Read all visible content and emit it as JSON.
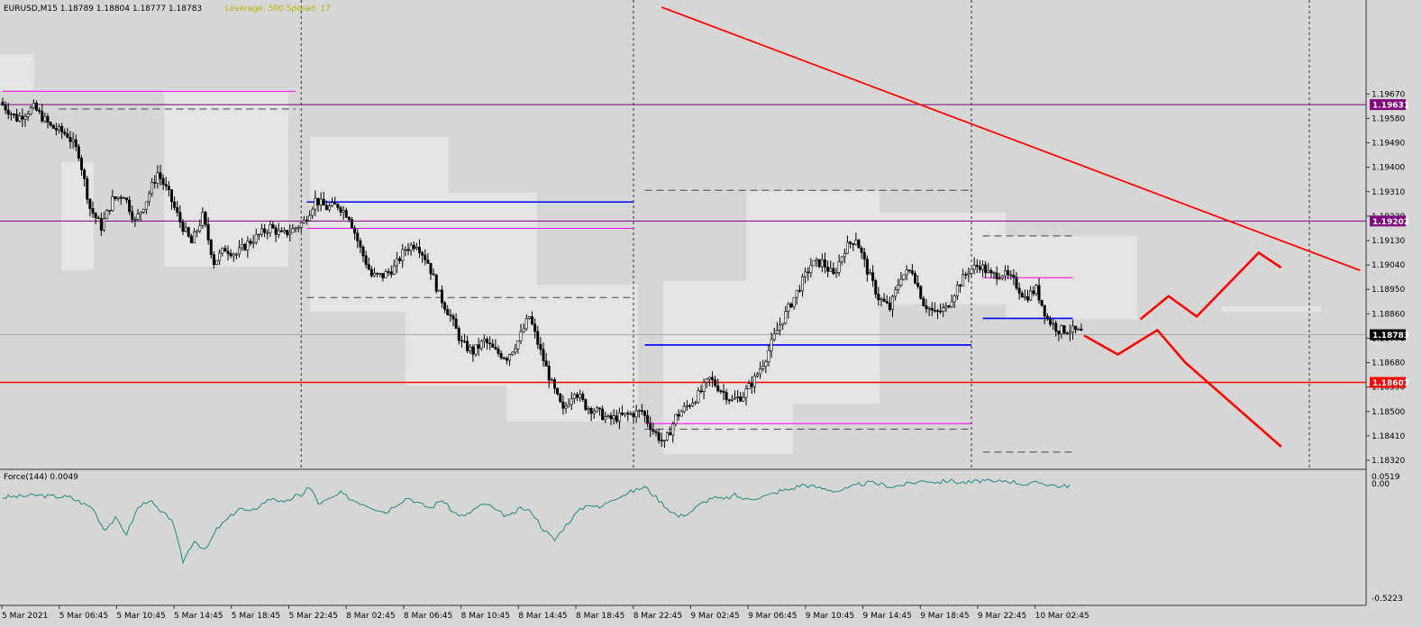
{
  "header": {
    "symbol_info": "EURUSD,M15  1.18789 1.18804 1.18777 1.18783",
    "leverage_info": "Leverage: 500 Spread: 17"
  },
  "indicator": {
    "label": "Force(144) 0.0049",
    "y_ticks": [
      "0.0519",
      "0.00",
      "-0.5223"
    ]
  },
  "colors": {
    "background": "#d6d6d6",
    "bull_candle": "#ffffff",
    "bear_candle": "#000000",
    "trendline": "#ff0000",
    "support": "#ff0000",
    "level_purple": "#800080",
    "level_blue": "#0000ff",
    "level_magenta": "#ff00ff",
    "force_line": "#1f8a7a"
  },
  "chart_data": {
    "type": "candlestick",
    "symbol": "EURUSD",
    "timeframe": "M15",
    "ylim": [
      1.1829,
      1.1999
    ],
    "y_ticks": [
      "1.19670",
      "1.19580",
      "1.19490",
      "1.19400",
      "1.19310",
      "1.19220",
      "1.19130",
      "1.19040",
      "1.18950",
      "1.18860",
      "1.18770",
      "1.18680",
      "1.18590",
      "1.18500",
      "1.18410",
      "1.18320"
    ],
    "x_ticks": [
      "5 Mar 2021",
      "5 Mar 06:45",
      "5 Mar 10:45",
      "5 Mar 14:45",
      "5 Mar 18:45",
      "5 Mar 22:45",
      "8 Mar 02:45",
      "8 Mar 06:45",
      "8 Mar 10:45",
      "8 Mar 14:45",
      "8 Mar 18:45",
      "8 Mar 22:45",
      "9 Mar 02:45",
      "9 Mar 06:45",
      "9 Mar 10:45",
      "9 Mar 14:45",
      "9 Mar 18:45",
      "9 Mar 22:45",
      "10 Mar 02:45"
    ],
    "price_path": [
      [
        0,
        1.1964
      ],
      [
        3,
        1.1958
      ],
      [
        6,
        1.1962
      ],
      [
        9,
        1.1955
      ],
      [
        12,
        1.1952
      ],
      [
        14,
        1.1945
      ],
      [
        16,
        1.1925
      ],
      [
        18,
        1.1918
      ],
      [
        20,
        1.1928
      ],
      [
        22,
        1.193
      ],
      [
        24,
        1.192
      ],
      [
        26,
        1.1928
      ],
      [
        28,
        1.1938
      ],
      [
        30,
        1.193
      ],
      [
        32,
        1.192
      ],
      [
        34,
        1.1912
      ],
      [
        36,
        1.1922
      ],
      [
        38,
        1.1905
      ],
      [
        40,
        1.191
      ],
      [
        42,
        1.1908
      ],
      [
        44,
        1.1912
      ],
      [
        46,
        1.1915
      ],
      [
        48,
        1.1918
      ],
      [
        50,
        1.1915
      ],
      [
        52,
        1.1917
      ],
      [
        54,
        1.192
      ],
      [
        56,
        1.1928
      ],
      [
        58,
        1.1925
      ],
      [
        60,
        1.1926
      ],
      [
        62,
        1.1922
      ],
      [
        64,
        1.191
      ],
      [
        66,
        1.19
      ],
      [
        68,
        1.19
      ],
      [
        70,
        1.1903
      ],
      [
        72,
        1.191
      ],
      [
        74,
        1.1912
      ],
      [
        76,
        1.1905
      ],
      [
        78,
        1.1893
      ],
      [
        80,
        1.1885
      ],
      [
        82,
        1.1875
      ],
      [
        84,
        1.1872
      ],
      [
        86,
        1.1876
      ],
      [
        88,
        1.1872
      ],
      [
        90,
        1.187
      ],
      [
        92,
        1.1876
      ],
      [
        94,
        1.1885
      ],
      [
        96,
        1.1872
      ],
      [
        98,
        1.186
      ],
      [
        100,
        1.185
      ],
      [
        102,
        1.1858
      ],
      [
        104,
        1.1852
      ],
      [
        106,
        1.185
      ],
      [
        108,
        1.1847
      ],
      [
        110,
        1.1848
      ],
      [
        112,
        1.1849
      ],
      [
        114,
        1.185
      ],
      [
        116,
        1.1843
      ],
      [
        118,
        1.1838
      ],
      [
        120,
        1.1848
      ],
      [
        122,
        1.1852
      ],
      [
        124,
        1.1856
      ],
      [
        126,
        1.1862
      ],
      [
        128,
        1.1858
      ],
      [
        130,
        1.1854
      ],
      [
        132,
        1.1856
      ],
      [
        134,
        1.1862
      ],
      [
        136,
        1.187
      ],
      [
        138,
        1.188
      ],
      [
        140,
        1.1888
      ],
      [
        142,
        1.1896
      ],
      [
        144,
        1.1904
      ],
      [
        146,
        1.1905
      ],
      [
        148,
        1.19
      ],
      [
        150,
        1.191
      ],
      [
        152,
        1.1914
      ],
      [
        154,
        1.1902
      ],
      [
        156,
        1.1892
      ],
      [
        158,
        1.1888
      ],
      [
        160,
        1.19
      ],
      [
        162,
        1.1902
      ],
      [
        164,
        1.189
      ],
      [
        166,
        1.1886
      ],
      [
        168,
        1.1888
      ],
      [
        170,
        1.1896
      ],
      [
        172,
        1.1902
      ],
      [
        174,
        1.1904
      ],
      [
        176,
        1.19
      ],
      [
        178,
        1.1901
      ],
      [
        180,
        1.1898
      ],
      [
        182,
        1.1892
      ],
      [
        184,
        1.1895
      ],
      [
        186,
        1.1884
      ],
      [
        188,
        1.188
      ],
      [
        190,
        1.188
      ],
      [
        192,
        1.1879
      ]
    ],
    "horizontal_levels": [
      {
        "label": "1.19631",
        "value": 1.19631,
        "color": "#800080"
      },
      {
        "label": "1.19202",
        "value": 1.19202,
        "color": "#800080"
      },
      {
        "label": "1.18783",
        "value": 1.18783,
        "color": "#000000"
      },
      {
        "label": "1.18607",
        "value": 1.18607,
        "color": "#ff0000"
      }
    ],
    "segments": [
      {
        "color": "#ff00ff",
        "dash": false,
        "x": [
          0,
          52
        ],
        "y": 1.1968
      },
      {
        "color": "#444444",
        "dash": true,
        "x": [
          10,
          52
        ],
        "y": 1.19615
      },
      {
        "color": "#0000ff",
        "dash": false,
        "x": [
          54,
          112
        ],
        "y": 1.19272
      },
      {
        "color": "#ff00ff",
        "dash": false,
        "x": [
          54,
          112
        ],
        "y": 1.19175
      },
      {
        "color": "#444444",
        "dash": true,
        "x": [
          54,
          112
        ],
        "y": 1.1892
      },
      {
        "color": "#444444",
        "dash": true,
        "x": [
          114,
          172
        ],
        "y": 1.19315
      },
      {
        "color": "#0000ff",
        "dash": false,
        "x": [
          114,
          172
        ],
        "y": 1.18745
      },
      {
        "color": "#ff00ff",
        "dash": false,
        "x": [
          114,
          172
        ],
        "y": 1.18455
      },
      {
        "color": "#444444",
        "dash": true,
        "x": [
          114,
          172
        ],
        "y": 1.18435
      },
      {
        "color": "#444444",
        "dash": true,
        "x": [
          174,
          190
        ],
        "y": 1.19147
      },
      {
        "color": "#ff00ff",
        "dash": false,
        "x": [
          174,
          190
        ],
        "y": 1.18993
      },
      {
        "color": "#0000ff",
        "dash": false,
        "x": [
          174,
          190
        ],
        "y": 1.18843
      },
      {
        "color": "#444444",
        "dash": true,
        "x": [
          174,
          190
        ],
        "y": 1.1835
      }
    ],
    "trendline": {
      "x": [
        117,
        241
      ],
      "y": [
        1.1999,
        1.1902
      ]
    },
    "forecast_paths": [
      {
        "x": [
          192,
          198,
          205,
          210,
          227
        ],
        "y": [
          1.1878,
          1.1871,
          1.188,
          1.1868,
          1.1837
        ]
      },
      {
        "x": [
          202,
          207,
          212,
          223,
          227
        ],
        "y": [
          1.1884,
          1.18925,
          1.1885,
          1.19085,
          1.1903
        ]
      }
    ],
    "force_series": [
      [
        0,
        -0.05
      ],
      [
        6,
        -0.04
      ],
      [
        12,
        -0.05
      ],
      [
        16,
        -0.1
      ],
      [
        18,
        -0.2
      ],
      [
        20,
        -0.15
      ],
      [
        22,
        -0.22
      ],
      [
        24,
        -0.1
      ],
      [
        26,
        -0.06
      ],
      [
        28,
        -0.12
      ],
      [
        30,
        -0.15
      ],
      [
        32,
        -0.35
      ],
      [
        34,
        -0.25
      ],
      [
        36,
        -0.3
      ],
      [
        38,
        -0.2
      ],
      [
        40,
        -0.15
      ],
      [
        42,
        -0.1
      ],
      [
        44,
        -0.12
      ],
      [
        46,
        -0.08
      ],
      [
        48,
        -0.05
      ],
      [
        50,
        -0.08
      ],
      [
        52,
        -0.04
      ],
      [
        53,
        -0.05
      ],
      [
        54,
        0.0
      ],
      [
        55,
        -0.02
      ],
      [
        56,
        -0.08
      ],
      [
        58,
        -0.06
      ],
      [
        60,
        -0.03
      ],
      [
        62,
        -0.06
      ],
      [
        64,
        -0.08
      ],
      [
        66,
        -0.1
      ],
      [
        68,
        -0.12
      ],
      [
        70,
        -0.08
      ],
      [
        72,
        -0.05
      ],
      [
        74,
        -0.08
      ],
      [
        76,
        -0.1
      ],
      [
        78,
        -0.06
      ],
      [
        80,
        -0.12
      ],
      [
        82,
        -0.14
      ],
      [
        84,
        -0.1
      ],
      [
        86,
        -0.08
      ],
      [
        88,
        -0.12
      ],
      [
        90,
        -0.14
      ],
      [
        92,
        -0.1
      ],
      [
        94,
        -0.12
      ],
      [
        96,
        -0.2
      ],
      [
        98,
        -0.25
      ],
      [
        100,
        -0.18
      ],
      [
        102,
        -0.12
      ],
      [
        104,
        -0.08
      ],
      [
        106,
        -0.1
      ],
      [
        108,
        -0.06
      ],
      [
        110,
        -0.04
      ],
      [
        112,
        -0.02
      ],
      [
        114,
        0.0
      ],
      [
        116,
        -0.05
      ],
      [
        118,
        -0.1
      ],
      [
        120,
        -0.14
      ],
      [
        122,
        -0.12
      ],
      [
        124,
        -0.08
      ],
      [
        126,
        -0.05
      ],
      [
        128,
        -0.06
      ],
      [
        130,
        -0.04
      ],
      [
        132,
        -0.06
      ],
      [
        134,
        -0.05
      ],
      [
        136,
        -0.04
      ],
      [
        138,
        -0.02
      ],
      [
        140,
        -0.01
      ],
      [
        142,
        0.01
      ],
      [
        144,
        0.0
      ],
      [
        146,
        -0.01
      ],
      [
        148,
        -0.02
      ],
      [
        150,
        -0.01
      ],
      [
        152,
        0.01
      ],
      [
        154,
        0.02
      ],
      [
        156,
        0.01
      ],
      [
        158,
        0.0
      ],
      [
        160,
        0.01
      ],
      [
        162,
        0.02
      ],
      [
        164,
        0.03
      ],
      [
        166,
        0.02
      ],
      [
        168,
        0.03
      ],
      [
        170,
        0.02
      ],
      [
        172,
        0.02
      ],
      [
        174,
        0.03
      ],
      [
        176,
        0.02
      ],
      [
        178,
        0.03
      ],
      [
        180,
        0.02
      ],
      [
        182,
        0.01
      ],
      [
        184,
        0.02
      ],
      [
        186,
        0.01
      ],
      [
        188,
        0.0
      ],
      [
        190,
        0.01
      ]
    ],
    "force_ylim": [
      -0.5223,
      0.0519
    ],
    "session_markers": [
      53,
      112,
      172,
      232
    ]
  }
}
